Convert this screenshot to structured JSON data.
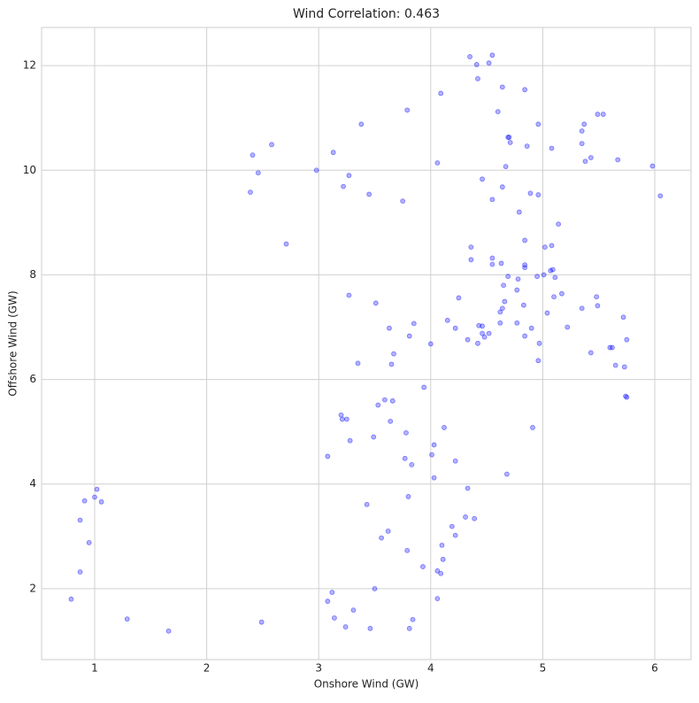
{
  "chart_data": {
    "type": "scatter",
    "title": "Wind Correlation: 0.463",
    "x_label": "Onshore Wind (GW)",
    "y_label": "Offshore Wind (GW)",
    "color": "blue",
    "grid": true,
    "xlim": [
      0.526,
      6.324
    ],
    "ylim": [
      0.644,
      12.73
    ],
    "xticks": [
      1,
      2,
      3,
      4,
      5,
      6
    ],
    "yticks": [
      2,
      4,
      6,
      8,
      10,
      12
    ],
    "x": [
      0.79,
      0.87,
      0.87,
      0.91,
      0.95,
      1.0,
      1.02,
      1.06,
      1.29,
      1.66,
      2.49,
      2.39,
      2.41,
      2.46,
      2.58,
      2.71,
      2.98,
      3.13,
      3.22,
      3.27,
      3.38,
      3.45,
      3.75,
      3.79,
      3.27,
      3.51,
      3.63,
      3.67,
      3.65,
      3.35,
      3.85,
      3.81,
      3.94,
      4.0,
      3.59,
      3.66,
      3.53,
      3.2,
      3.21,
      3.25,
      3.64,
      4.12,
      3.28,
      3.49,
      3.78,
      3.08,
      3.77,
      3.83,
      4.03,
      4.01,
      4.22,
      4.03,
      4.33,
      3.43,
      3.8,
      4.31,
      4.39,
      3.62,
      3.56,
      4.19,
      4.22,
      4.1,
      3.79,
      4.11,
      3.93,
      4.06,
      4.09,
      3.5,
      3.12,
      3.08,
      3.31,
      3.14,
      3.84,
      4.06,
      3.24,
      3.46,
      3.81,
      4.91,
      4.68,
      4.35,
      4.55,
      4.41,
      4.52,
      4.42,
      4.09,
      4.64,
      4.84,
      4.6,
      4.96,
      5.37,
      5.49,
      5.54,
      5.35,
      4.69,
      4.7,
      4.71,
      4.86,
      5.08,
      5.35,
      5.38,
      5.43,
      5.67,
      5.98,
      4.06,
      4.67,
      4.46,
      4.64,
      4.89,
      4.96,
      4.55,
      6.05,
      4.79,
      5.14,
      4.84,
      5.08,
      5.02,
      4.36,
      4.36,
      4.55,
      4.55,
      4.63,
      4.84,
      4.84,
      5.09,
      5.07,
      4.69,
      4.95,
      5.01,
      5.11,
      4.78,
      4.65,
      4.77,
      4.25,
      5.17,
      5.1,
      5.48,
      4.66,
      4.83,
      4.64,
      4.62,
      5.35,
      5.49,
      5.04,
      5.72,
      4.15,
      4.43,
      4.62,
      4.77,
      4.46,
      4.22,
      4.9,
      5.22,
      4.46,
      4.52,
      4.48,
      4.33,
      4.84,
      4.42,
      4.97,
      5.6,
      5.62,
      5.75,
      5.43,
      4.96,
      5.65,
      5.73,
      5.74,
      5.75
    ],
    "y": [
      1.8,
      2.32,
      3.31,
      3.68,
      2.88,
      3.75,
      3.9,
      3.66,
      1.42,
      1.19,
      1.36,
      9.58,
      10.29,
      9.95,
      10.49,
      8.59,
      10.0,
      10.34,
      9.69,
      9.9,
      10.88,
      9.54,
      9.41,
      11.15,
      7.61,
      7.46,
      6.98,
      6.49,
      6.29,
      6.31,
      7.07,
      6.83,
      5.85,
      6.68,
      5.61,
      5.59,
      5.51,
      5.32,
      5.24,
      5.24,
      5.2,
      5.08,
      4.83,
      4.9,
      4.98,
      4.53,
      4.49,
      4.37,
      4.75,
      4.56,
      4.44,
      4.12,
      3.92,
      3.61,
      3.76,
      3.37,
      3.34,
      3.1,
      2.97,
      3.19,
      3.02,
      2.83,
      2.73,
      2.56,
      2.42,
      2.34,
      2.29,
      2.0,
      1.93,
      1.76,
      1.59,
      1.44,
      1.41,
      1.81,
      1.27,
      1.24,
      1.24,
      5.08,
      4.19,
      12.17,
      12.2,
      12.02,
      12.05,
      11.75,
      11.47,
      11.59,
      11.54,
      11.12,
      10.88,
      10.88,
      11.07,
      11.07,
      10.75,
      10.63,
      10.63,
      10.53,
      10.46,
      10.42,
      10.51,
      10.17,
      10.24,
      10.2,
      10.08,
      10.14,
      10.07,
      9.83,
      9.68,
      9.56,
      9.53,
      9.44,
      9.51,
      9.2,
      8.97,
      8.66,
      8.56,
      8.53,
      8.53,
      8.29,
      8.32,
      8.2,
      8.22,
      8.19,
      8.14,
      8.1,
      8.08,
      7.97,
      7.97,
      8.0,
      7.95,
      7.92,
      7.8,
      7.71,
      7.56,
      7.64,
      7.58,
      7.58,
      7.49,
      7.42,
      7.36,
      7.29,
      7.36,
      7.41,
      7.27,
      7.19,
      7.13,
      7.03,
      7.08,
      7.08,
      7.02,
      6.98,
      6.98,
      7.0,
      6.88,
      6.88,
      6.81,
      6.76,
      6.83,
      6.69,
      6.69,
      6.61,
      6.61,
      6.76,
      6.51,
      6.36,
      6.27,
      6.24,
      5.68,
      5.66
    ]
  }
}
